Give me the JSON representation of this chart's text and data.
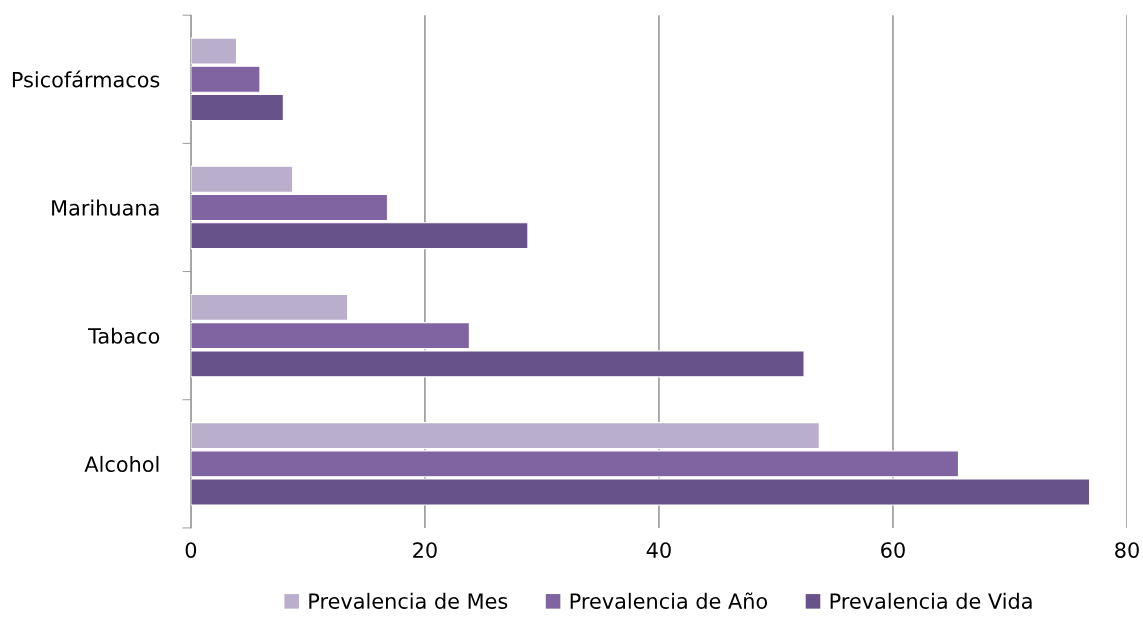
{
  "chart_data": {
    "type": "bar",
    "orientation": "horizontal",
    "categories": [
      "Psicofármacos",
      "Marihuana",
      "Tabaco",
      "Alcohol"
    ],
    "series": [
      {
        "name": "Prevalencia de Mes",
        "color": "#b9afcc",
        "values": [
          3.9,
          8.7,
          13.4,
          53.7
        ]
      },
      {
        "name": "Prevalencia de Año",
        "color": "#8064a2",
        "values": [
          5.9,
          16.8,
          23.8,
          65.6
        ]
      },
      {
        "name": "Prevalencia de Vida",
        "color": "#68528a",
        "values": [
          7.9,
          28.8,
          52.4,
          76.8
        ]
      }
    ],
    "xlim": [
      0,
      80
    ],
    "xticks": [
      0,
      20,
      40,
      60,
      80
    ],
    "grid": "x",
    "legend": "bottom"
  }
}
